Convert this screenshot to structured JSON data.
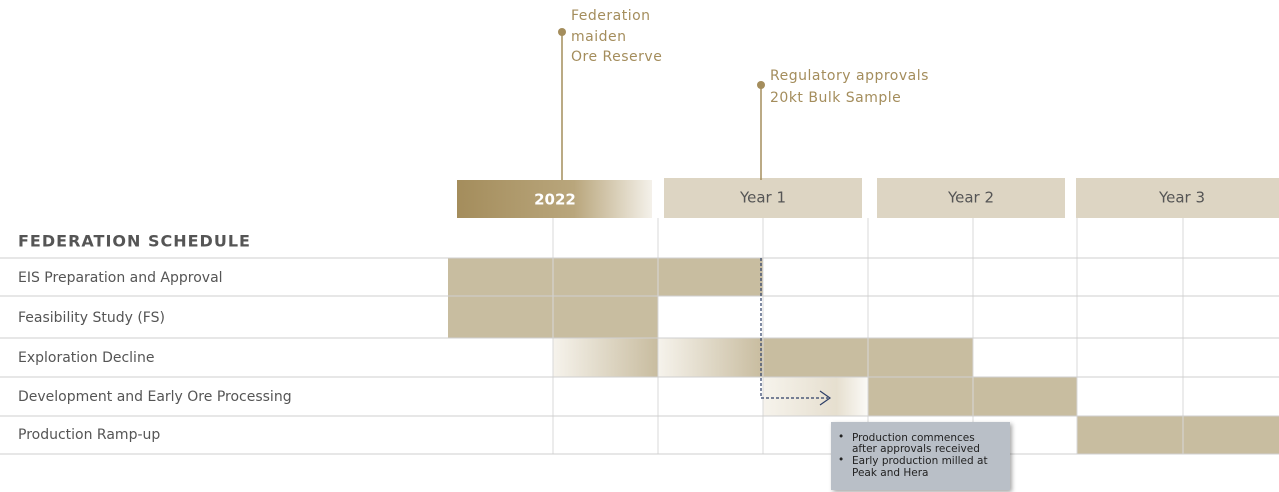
{
  "milestones": [
    {
      "lines": [
        "Federation",
        "maiden",
        "Ore Reserve"
      ]
    },
    {
      "lines": [
        "Regulatory approvals",
        "20kt Bulk Sample"
      ]
    }
  ],
  "periods": [
    "2022",
    "Year 1",
    "Year 2",
    "Year 3"
  ],
  "schedule": {
    "title": "FEDERATION SCHEDULE",
    "rows": [
      "EIS Preparation and Approval",
      "Feasibility Study (FS)",
      "Exploration Decline",
      "Development and Early Ore Processing",
      "Production Ramp-up"
    ]
  },
  "note": {
    "bullets": [
      [
        "Production commences",
        "after approvals received"
      ],
      [
        "Early production milled at",
        "Peak and Hera"
      ]
    ]
  }
}
